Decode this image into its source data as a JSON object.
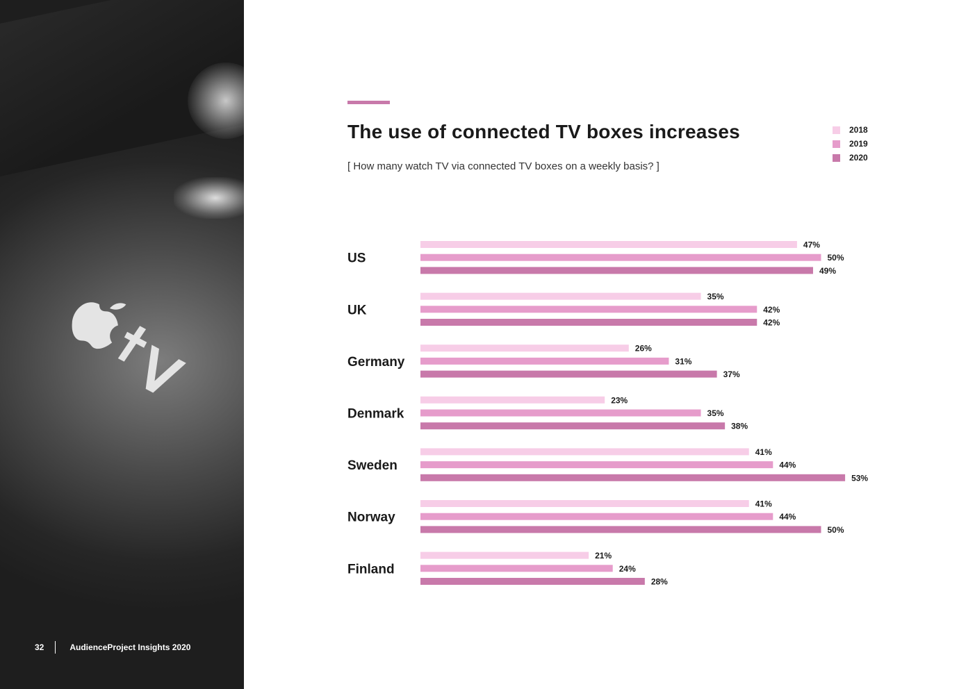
{
  "page": {
    "number": "32",
    "publication": "AudienceProject Insights 2020"
  },
  "colors": {
    "accent": "#c879aa",
    "series2018": "#f7cde7",
    "series2019": "#e69ccb",
    "series2020": "#c879aa"
  },
  "chart_data": {
    "type": "bar",
    "orientation": "horizontal",
    "title": "The use of connected TV boxes increases",
    "subtitle": "[ How many watch TV via connected TV boxes on a weekly basis? ]",
    "categories": [
      "US",
      "UK",
      "Germany",
      "Denmark",
      "Sweden",
      "Norway",
      "Finland"
    ],
    "series": [
      {
        "name": "2018",
        "values": [
          47,
          35,
          26,
          23,
          41,
          41,
          21
        ]
      },
      {
        "name": "2019",
        "values": [
          50,
          42,
          31,
          35,
          44,
          44,
          24
        ]
      },
      {
        "name": "2020",
        "values": [
          49,
          42,
          37,
          38,
          53,
          50,
          28
        ]
      }
    ],
    "unit": "%",
    "xlim": [
      0,
      53
    ],
    "legend": "top-right",
    "grid": false
  }
}
